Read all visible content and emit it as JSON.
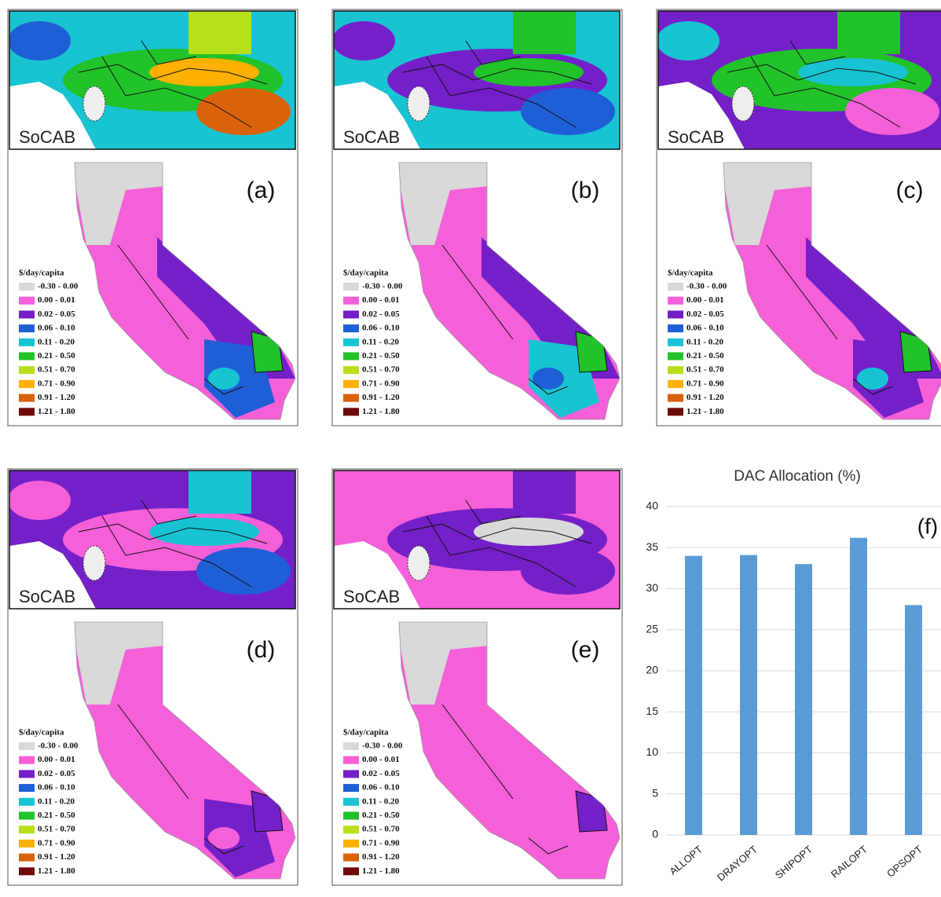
{
  "panels": [
    {
      "inset_label": "SoCAB",
      "label": "(a)"
    },
    {
      "inset_label": "SoCAB",
      "label": "(b)"
    },
    {
      "inset_label": "SoCAB",
      "label": "(c)"
    },
    {
      "inset_label": "SoCAB",
      "label": "(d)"
    },
    {
      "inset_label": "SoCAB",
      "label": "(e)"
    }
  ],
  "map_legend": {
    "title": "$/day/capita",
    "items": [
      {
        "label": "-0.30 - 0.00",
        "color": "#d9d9d9"
      },
      {
        "label": "0.00 - 0.01",
        "color": "#f55fd8"
      },
      {
        "label": "0.02 - 0.05",
        "color": "#7420c8"
      },
      {
        "label": "0.06 - 0.10",
        "color": "#1f5fd6"
      },
      {
        "label": "0.11 - 0.20",
        "color": "#18c4d2"
      },
      {
        "label": "0.21 - 0.50",
        "color": "#22c22a"
      },
      {
        "label": "0.51 - 0.70",
        "color": "#b7e01b"
      },
      {
        "label": "0.71 - 0.90",
        "color": "#ffb000"
      },
      {
        "label": "0.91 - 1.20",
        "color": "#d9620a"
      },
      {
        "label": "1.21 - 1.80",
        "color": "#6e0a0a"
      }
    ]
  },
  "chart_data": {
    "type": "bar",
    "title": "DAC Allocation (%)",
    "annotation": "(f)",
    "categories": [
      "ALLOPT",
      "DRAYOPT",
      "SHIPOPT",
      "RAILOPT",
      "OPSOPT"
    ],
    "values": [
      34,
      34.1,
      33,
      36.2,
      28
    ],
    "color": "#5b9bd5",
    "ylim": [
      0,
      40
    ],
    "yticks": [
      0,
      5,
      10,
      15,
      20,
      25,
      30,
      35,
      40
    ],
    "grid": true
  }
}
